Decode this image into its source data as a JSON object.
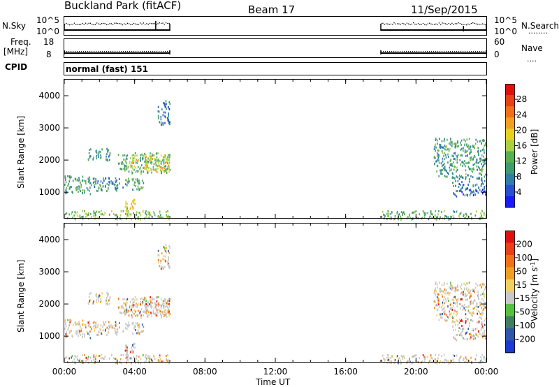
{
  "header": {
    "station": "Buckland Park (fitACF)",
    "beam": "Beam 17",
    "date": "11/Sep/2015"
  },
  "sky_panel": {
    "left_label": "N.Sky",
    "right_label": "N.Search",
    "left_ticks": [
      "10^5",
      "10^0"
    ],
    "right_ticks": [
      "10^5",
      "10^0"
    ],
    "right_marker": "........"
  },
  "freq_panel": {
    "left_label_1": "Freq.",
    "left_label_2": "[MHz]",
    "right_label": "Nave",
    "left_ticks": [
      "18",
      "8"
    ],
    "right_ticks": [
      "60",
      "0"
    ],
    "right_marker": "....",
    "cpid_label": "CPID"
  },
  "cpid_panel": {
    "text": "normal (fast) 151"
  },
  "chart_data": [
    {
      "type": "heatmap",
      "name": "power",
      "ylabel": "Slant Range [km]",
      "xlabel": "Time UT",
      "y_ticks": [
        {
          "value": 1000,
          "label": "1000"
        },
        {
          "value": 2000,
          "label": "2000"
        },
        {
          "value": 3000,
          "label": "3000"
        },
        {
          "value": 4000,
          "label": "4000"
        }
      ],
      "ylim": [
        200,
        4500
      ],
      "xlim": [
        0,
        24
      ],
      "colorbar": {
        "label": "Power [dB]",
        "ticks": [
          "28",
          "24",
          "20",
          "16",
          "12",
          "8",
          "4"
        ],
        "range": [
          0,
          32
        ],
        "colors": [
          "#1a1aff",
          "#284fd0",
          "#2f7ea8",
          "#3f9b70",
          "#58b050",
          "#a8d040",
          "#e8d020",
          "#f0a020",
          "#f07018",
          "#e84018",
          "#e01010"
        ]
      },
      "data_windows_hours": [
        [
          0,
          6
        ],
        [
          18,
          24
        ]
      ],
      "echo_bands": [
        {
          "t": [
            0.0,
            6.0
          ],
          "r": [
            180,
            450
          ],
          "level": 14
        },
        {
          "t": [
            0.0,
            1.5
          ],
          "r": [
            950,
            1550
          ],
          "level": 10
        },
        {
          "t": [
            1.5,
            3.0
          ],
          "r": [
            1050,
            1500
          ],
          "level": 8
        },
        {
          "t": [
            2.8,
            4.5
          ],
          "r": [
            1100,
            1450
          ],
          "level": 10
        },
        {
          "t": [
            3.0,
            6.0
          ],
          "r": [
            1600,
            2250
          ],
          "level": 12
        },
        {
          "t": [
            3.5,
            4.2
          ],
          "r": [
            1750,
            2050
          ],
          "level": 20
        },
        {
          "t": [
            4.5,
            6.0
          ],
          "r": [
            1650,
            2200
          ],
          "level": 18
        },
        {
          "t": [
            3.4,
            4.0
          ],
          "r": [
            450,
            900
          ],
          "level": 18
        },
        {
          "t": [
            1.3,
            2.6
          ],
          "r": [
            2000,
            2400
          ],
          "level": 8
        },
        {
          "t": [
            5.3,
            6.0
          ],
          "r": [
            3100,
            3900
          ],
          "level": 6
        },
        {
          "t": [
            18.0,
            24.0
          ],
          "r": [
            180,
            450
          ],
          "level": 12
        },
        {
          "t": [
            21.0,
            24.0
          ],
          "r": [
            1500,
            2700
          ],
          "level": 10
        },
        {
          "t": [
            22.0,
            24.0
          ],
          "r": [
            900,
            1500
          ],
          "level": 6
        }
      ]
    },
    {
      "type": "heatmap",
      "name": "velocity",
      "ylabel": "Slant Range [km]",
      "xlabel": "Time UT",
      "y_ticks": [
        {
          "value": 1000,
          "label": "1000"
        },
        {
          "value": 2000,
          "label": "2000"
        },
        {
          "value": 3000,
          "label": "3000"
        },
        {
          "value": 4000,
          "label": "4000"
        }
      ],
      "ylim": [
        200,
        4500
      ],
      "xlim": [
        0,
        24
      ],
      "x_ticks": [
        {
          "value": 0,
          "label": "00:00"
        },
        {
          "value": 4,
          "label": "04:00"
        },
        {
          "value": 8,
          "label": "08:00"
        },
        {
          "value": 12,
          "label": "12:00"
        },
        {
          "value": 16,
          "label": "16:00"
        },
        {
          "value": 20,
          "label": "20:00"
        },
        {
          "value": 24,
          "label": "00:00"
        }
      ],
      "colorbar": {
        "label": "Velocity [m s",
        "label_sup": "-1",
        "label_end": "]",
        "ticks": [
          "200",
          "100",
          "50",
          "15",
          "-15",
          "-50",
          "-100",
          "-200"
        ],
        "colors": [
          "#1a3ad0",
          "#2f56a8",
          "#3f7f60",
          "#58c040",
          "#c8c8c8",
          "#f0d060",
          "#f0a020",
          "#f07018",
          "#e84018",
          "#e01010"
        ]
      },
      "data_windows_hours": [
        [
          0,
          6
        ],
        [
          18,
          24
        ]
      ]
    }
  ]
}
